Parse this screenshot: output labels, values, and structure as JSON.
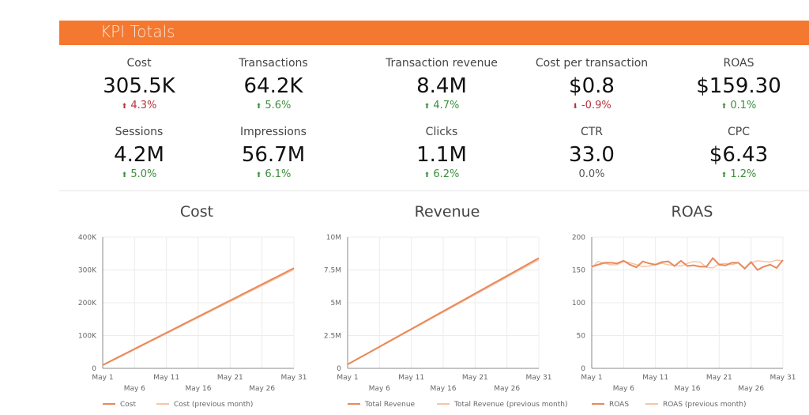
{
  "header": {
    "title": "KPI Totals",
    "color": "#f4782f"
  },
  "kpis": [
    {
      "label": "Cost",
      "value": "305.5K",
      "delta": "4.3%",
      "trend": "down-bad",
      "arrow": "arrow-up-icon"
    },
    {
      "label": "Transactions",
      "value": "64.2K",
      "delta": "5.6%",
      "trend": "up",
      "arrow": "arrow-up-icon"
    },
    {
      "label": "Transaction revenue",
      "value": "8.4M",
      "delta": "4.7%",
      "trend": "up",
      "arrow": "arrow-up-icon"
    },
    {
      "label": "Cost per transaction",
      "value": "$0.8",
      "delta": "-0.9%",
      "trend": "down-bad",
      "arrow": "arrow-down-icon"
    },
    {
      "label": "ROAS",
      "value": "$159.30",
      "delta": "0.1%",
      "trend": "up",
      "arrow": "arrow-up-icon"
    },
    {
      "label": "Sessions",
      "value": "4.2M",
      "delta": "5.0%",
      "trend": "up",
      "arrow": "arrow-up-icon"
    },
    {
      "label": "Impressions",
      "value": "56.7M",
      "delta": "6.1%",
      "trend": "up",
      "arrow": "arrow-up-icon"
    },
    {
      "label": "Clicks",
      "value": "1.1M",
      "delta": "6.2%",
      "trend": "up",
      "arrow": "arrow-up-icon"
    },
    {
      "label": "CTR",
      "value": "33.0",
      "delta": "0.0%",
      "trend": "flat",
      "arrow": ""
    },
    {
      "label": "CPC",
      "value": "$6.43",
      "delta": "1.2%",
      "trend": "up",
      "arrow": "arrow-up-icon"
    }
  ],
  "chart_data": [
    {
      "type": "line",
      "title": "Cost",
      "ylim": [
        0,
        400
      ],
      "yticks": [
        "0",
        "100K",
        "200K",
        "300K",
        "400K"
      ],
      "ytick_values": [
        0,
        100,
        200,
        300,
        400
      ],
      "xticks_top": [
        "May 1",
        "May 11",
        "May 21",
        "May 31"
      ],
      "xticks_bottom": [
        "May 6",
        "May 16",
        "May 26"
      ],
      "series": [
        {
          "name": "Cost",
          "color": "#e8895a",
          "values": [
            10,
            19.9,
            29.7,
            39.6,
            49.4,
            59.3,
            69.1,
            79,
            88.8,
            98.7,
            108.5,
            118.4,
            128.2,
            138.1,
            147.9,
            157.8,
            167.6,
            177.5,
            187.3,
            197.2,
            207,
            216.9,
            226.7,
            236.6,
            246.4,
            256.3,
            266.1,
            276,
            285.8,
            295.7,
            305.5
          ]
        },
        {
          "name": "Cost (previous month)",
          "color": "#f6c4a6",
          "values": [
            9,
            18.5,
            28,
            37.8,
            47.5,
            57.2,
            67,
            76.8,
            86.5,
            96.3,
            106,
            115.8,
            125.5,
            135.3,
            145,
            154.8,
            164.5,
            174.3,
            184,
            193.8,
            203.5,
            213.3,
            223,
            232.8,
            242.5,
            252.3,
            262,
            271.8,
            281.5,
            291.3,
            301
          ]
        }
      ]
    },
    {
      "type": "line",
      "title": "Revenue",
      "ylim": [
        0,
        10
      ],
      "yticks": [
        "0",
        "2.5M",
        "5M",
        "7.5M",
        "10M"
      ],
      "ytick_values": [
        0,
        2.5,
        5,
        7.5,
        10
      ],
      "xticks_top": [
        "May 1",
        "May 11",
        "May 21",
        "May 31"
      ],
      "xticks_bottom": [
        "May 6",
        "May 16",
        "May 26"
      ],
      "series": [
        {
          "name": "Total Revenue",
          "color": "#e8895a",
          "values": [
            0.3,
            0.57,
            0.84,
            1.11,
            1.38,
            1.65,
            1.92,
            2.19,
            2.46,
            2.73,
            3.0,
            3.27,
            3.54,
            3.81,
            4.08,
            4.35,
            4.62,
            4.89,
            5.16,
            5.43,
            5.7,
            5.97,
            6.24,
            6.51,
            6.78,
            7.05,
            7.32,
            7.59,
            7.86,
            8.13,
            8.4
          ]
        },
        {
          "name": "Total Revenue (previous month)",
          "color": "#f6c4a6",
          "values": [
            0.28,
            0.55,
            0.82,
            1.08,
            1.35,
            1.62,
            1.88,
            2.15,
            2.42,
            2.68,
            2.95,
            3.22,
            3.48,
            3.75,
            4.02,
            4.28,
            4.55,
            4.82,
            5.08,
            5.35,
            5.62,
            5.88,
            6.15,
            6.42,
            6.68,
            6.95,
            7.22,
            7.48,
            7.75,
            8.02,
            8.28
          ]
        }
      ]
    },
    {
      "type": "line",
      "title": "ROAS",
      "ylim": [
        0,
        200
      ],
      "yticks": [
        "0",
        "50",
        "100",
        "150",
        "200"
      ],
      "ytick_values": [
        0,
        50,
        100,
        150,
        200
      ],
      "xticks_top": [
        "May 1",
        "May 11",
        "May 21",
        "May 31"
      ],
      "xticks_bottom": [
        "May 6",
        "May 16",
        "May 26"
      ],
      "series": [
        {
          "name": "ROAS",
          "color": "#e8895a",
          "values": [
            155,
            158,
            161,
            161,
            160,
            164,
            158,
            154,
            163,
            160,
            158,
            162,
            163,
            156,
            164,
            156,
            157,
            155,
            155,
            168,
            158,
            157,
            161,
            161,
            152,
            162,
            150,
            155,
            158,
            153,
            165
          ]
        },
        {
          "name": "ROAS (previous month)",
          "color": "#f6c4a6",
          "values": [
            153,
            163,
            160,
            158,
            158,
            163,
            161,
            158,
            155,
            156,
            158,
            160,
            158,
            157,
            156,
            160,
            163,
            162,
            154,
            153,
            159,
            160,
            158,
            161,
            153,
            161,
            164,
            163,
            162,
            165,
            164
          ]
        }
      ]
    }
  ]
}
